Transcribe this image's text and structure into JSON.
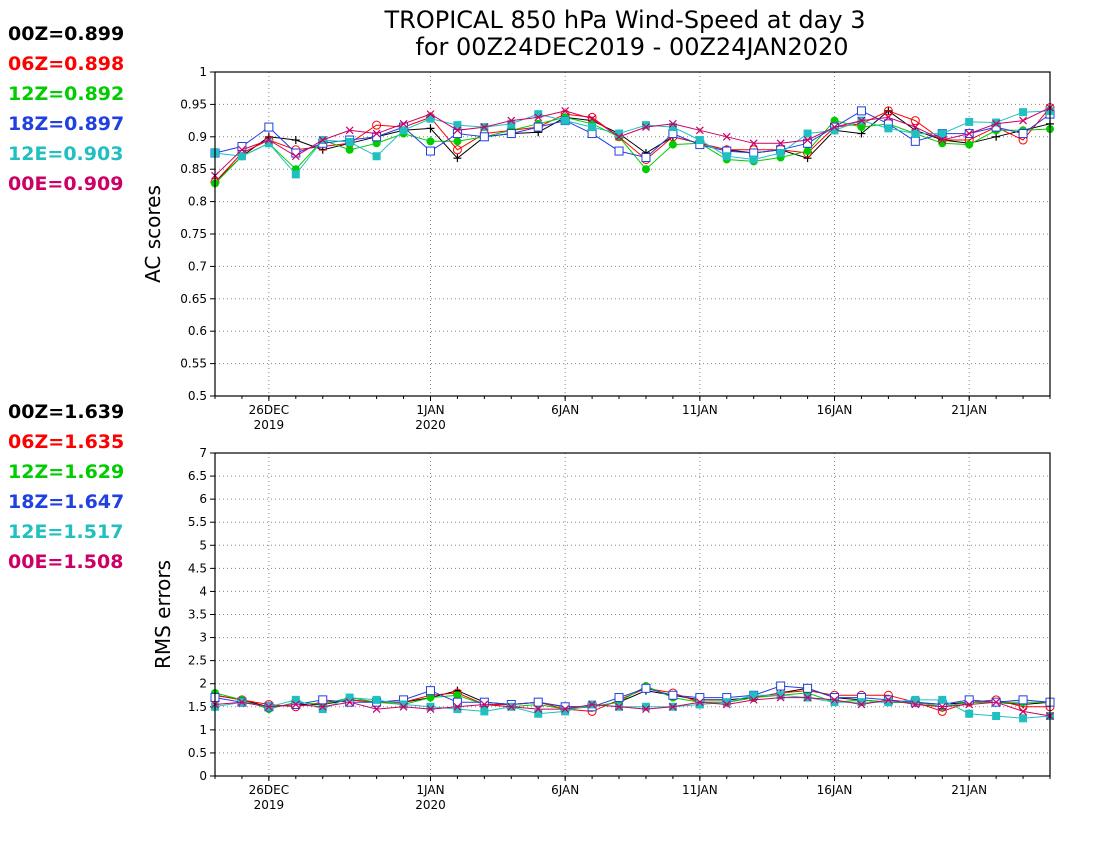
{
  "title_line1": "TROPICAL 850 hPa Wind-Speed at day 3",
  "title_line2": "for 00Z24DEC2019 - 00Z24JAN2020",
  "colors": {
    "00Z": "#000000",
    "06Z": "#ff0000",
    "12Z": "#00cc00",
    "18Z": "#2040e0",
    "12E": "#20c0c0",
    "00E": "#cc0066"
  },
  "markers": {
    "00Z": "plus",
    "06Z": "circle",
    "12Z": "filled-circle",
    "18Z": "open-square",
    "12E": "filled-square",
    "00E": "cross"
  },
  "chart_data": [
    {
      "type": "line",
      "ylabel": "AC scores",
      "ylim": [
        0.5,
        1
      ],
      "yticks": [
        "0.5",
        "0.55",
        "0.6",
        "0.65",
        "0.7",
        "0.75",
        "0.8",
        "0.85",
        "0.9",
        "0.95",
        "1"
      ],
      "x_ticks": [
        {
          "day": 2,
          "line1": "26DEC",
          "line2": "2019"
        },
        {
          "day": 8,
          "line1": "1JAN",
          "line2": "2020"
        },
        {
          "day": 13,
          "line1": "6JAN",
          "line2": ""
        },
        {
          "day": 18,
          "line1": "11JAN",
          "line2": ""
        },
        {
          "day": 23,
          "line1": "16JAN",
          "line2": ""
        },
        {
          "day": 28,
          "line1": "21JAN",
          "line2": ""
        }
      ],
      "grid": true,
      "legend": [
        {
          "key": "00Z",
          "label": "00Z=0.899"
        },
        {
          "key": "06Z",
          "label": "06Z=0.898"
        },
        {
          "key": "12Z",
          "label": "12Z=0.892"
        },
        {
          "key": "18Z",
          "label": "18Z=0.897"
        },
        {
          "key": "12E",
          "label": "12E=0.903"
        },
        {
          "key": "00E",
          "label": "00E=0.909"
        }
      ],
      "series": [
        {
          "key": "00Z",
          "values": [
            0.83,
            0.87,
            0.9,
            0.895,
            0.88,
            0.89,
            0.9,
            0.91,
            0.913,
            0.867,
            0.9,
            0.905,
            0.907,
            0.93,
            0.925,
            0.905,
            0.875,
            0.9,
            0.89,
            0.88,
            0.875,
            0.88,
            0.867,
            0.91,
            0.905,
            0.94,
            0.91,
            0.895,
            0.89,
            0.9,
            0.91,
            0.92
          ]
        },
        {
          "key": "06Z",
          "values": [
            0.83,
            0.875,
            0.895,
            0.88,
            0.885,
            0.89,
            0.918,
            0.915,
            0.93,
            0.88,
            0.905,
            0.91,
            0.915,
            0.935,
            0.93,
            0.9,
            0.865,
            0.9,
            0.89,
            0.88,
            0.88,
            0.88,
            0.875,
            0.915,
            0.92,
            0.94,
            0.925,
            0.895,
            0.895,
            0.915,
            0.895,
            0.945
          ]
        },
        {
          "key": "12Z",
          "values": [
            0.828,
            0.87,
            0.89,
            0.85,
            0.895,
            0.88,
            0.89,
            0.905,
            0.893,
            0.893,
            0.9,
            0.91,
            0.92,
            0.93,
            0.92,
            0.9,
            0.85,
            0.888,
            0.89,
            0.865,
            0.862,
            0.868,
            0.878,
            0.925,
            0.915,
            0.92,
            0.905,
            0.89,
            0.888,
            0.91,
            0.91,
            0.912
          ]
        },
        {
          "key": "18Z",
          "values": [
            0.875,
            0.885,
            0.915,
            0.875,
            0.89,
            0.895,
            0.9,
            0.915,
            0.878,
            0.905,
            0.9,
            0.905,
            0.915,
            0.925,
            0.905,
            0.878,
            0.868,
            0.905,
            0.888,
            0.878,
            0.875,
            0.88,
            0.89,
            0.915,
            0.94,
            0.92,
            0.893,
            0.905,
            0.905,
            0.915,
            0.905,
            0.935
          ]
        },
        {
          "key": "12E",
          "values": [
            0.875,
            0.87,
            0.89,
            0.842,
            0.895,
            0.892,
            0.87,
            0.91,
            0.928,
            0.918,
            0.915,
            0.92,
            0.935,
            0.925,
            0.915,
            0.905,
            0.918,
            0.915,
            0.895,
            0.87,
            0.865,
            0.875,
            0.905,
            0.91,
            0.925,
            0.913,
            0.905,
            0.905,
            0.923,
            0.922,
            0.938,
            0.94
          ]
        },
        {
          "key": "00E",
          "values": [
            0.84,
            0.88,
            0.895,
            0.87,
            0.895,
            0.91,
            0.905,
            0.92,
            0.935,
            0.91,
            0.915,
            0.925,
            0.93,
            0.94,
            0.928,
            0.9,
            0.915,
            0.92,
            0.91,
            0.9,
            0.89,
            0.89,
            0.895,
            0.915,
            0.925,
            0.93,
            0.915,
            0.895,
            0.905,
            0.92,
            0.925,
            0.945
          ]
        }
      ]
    },
    {
      "type": "line",
      "ylabel": "RMS errors",
      "ylim": [
        0,
        7
      ],
      "yticks": [
        "0",
        "0.5",
        "1",
        "1.5",
        "2",
        "2.5",
        "3",
        "3.5",
        "4",
        "4.5",
        "5",
        "5.5",
        "6",
        "6.5",
        "7"
      ],
      "x_ticks": [
        {
          "day": 2,
          "line1": "26DEC",
          "line2": "2019"
        },
        {
          "day": 8,
          "line1": "1JAN",
          "line2": "2020"
        },
        {
          "day": 13,
          "line1": "6JAN",
          "line2": ""
        },
        {
          "day": 18,
          "line1": "11JAN",
          "line2": ""
        },
        {
          "day": 23,
          "line1": "16JAN",
          "line2": ""
        },
        {
          "day": 28,
          "line1": "21JAN",
          "line2": ""
        }
      ],
      "grid": true,
      "legend": [
        {
          "key": "00Z",
          "label": "00Z=1.639"
        },
        {
          "key": "06Z",
          "label": "06Z=1.635"
        },
        {
          "key": "12Z",
          "label": "12Z=1.629"
        },
        {
          "key": "18Z",
          "label": "18Z=1.647"
        },
        {
          "key": "12E",
          "label": "12E=1.517"
        },
        {
          "key": "00E",
          "label": "00E=1.508"
        }
      ],
      "series": [
        {
          "key": "00Z",
          "values": [
            1.75,
            1.65,
            1.5,
            1.55,
            1.55,
            1.65,
            1.6,
            1.6,
            1.7,
            1.85,
            1.6,
            1.55,
            1.6,
            1.5,
            1.5,
            1.6,
            1.85,
            1.75,
            1.65,
            1.65,
            1.7,
            1.8,
            1.9,
            1.7,
            1.65,
            1.6,
            1.6,
            1.55,
            1.6,
            1.6,
            1.55,
            1.6
          ]
        },
        {
          "key": "06Z",
          "values": [
            1.75,
            1.65,
            1.55,
            1.5,
            1.6,
            1.65,
            1.6,
            1.6,
            1.75,
            1.8,
            1.55,
            1.55,
            1.6,
            1.45,
            1.4,
            1.65,
            1.9,
            1.8,
            1.6,
            1.6,
            1.7,
            1.8,
            1.85,
            1.75,
            1.75,
            1.75,
            1.6,
            1.4,
            1.6,
            1.65,
            1.5,
            1.5
          ]
        },
        {
          "key": "12Z",
          "values": [
            1.8,
            1.65,
            1.45,
            1.6,
            1.55,
            1.7,
            1.6,
            1.55,
            1.7,
            1.75,
            1.55,
            1.5,
            1.55,
            1.45,
            1.5,
            1.6,
            1.95,
            1.7,
            1.6,
            1.6,
            1.7,
            1.75,
            1.8,
            1.6,
            1.65,
            1.6,
            1.6,
            1.5,
            1.6,
            1.6,
            1.6,
            1.6
          ]
        },
        {
          "key": "18Z",
          "values": [
            1.7,
            1.6,
            1.5,
            1.55,
            1.65,
            1.6,
            1.6,
            1.65,
            1.85,
            1.6,
            1.6,
            1.55,
            1.6,
            1.5,
            1.5,
            1.7,
            1.9,
            1.75,
            1.7,
            1.7,
            1.75,
            1.95,
            1.9,
            1.7,
            1.7,
            1.65,
            1.6,
            1.55,
            1.65,
            1.6,
            1.65,
            1.6
          ]
        },
        {
          "key": "12E",
          "values": [
            1.5,
            1.6,
            1.5,
            1.65,
            1.45,
            1.7,
            1.65,
            1.55,
            1.5,
            1.45,
            1.4,
            1.5,
            1.35,
            1.4,
            1.55,
            1.5,
            1.5,
            1.5,
            1.55,
            1.6,
            1.75,
            1.75,
            1.7,
            1.6,
            1.6,
            1.6,
            1.65,
            1.65,
            1.35,
            1.3,
            1.25,
            1.3
          ]
        },
        {
          "key": "00E",
          "values": [
            1.55,
            1.6,
            1.5,
            1.55,
            1.5,
            1.6,
            1.45,
            1.5,
            1.45,
            1.5,
            1.55,
            1.5,
            1.45,
            1.45,
            1.55,
            1.5,
            1.45,
            1.5,
            1.6,
            1.55,
            1.65,
            1.7,
            1.7,
            1.65,
            1.55,
            1.65,
            1.55,
            1.5,
            1.55,
            1.6,
            1.4,
            1.3
          ]
        }
      ]
    }
  ]
}
